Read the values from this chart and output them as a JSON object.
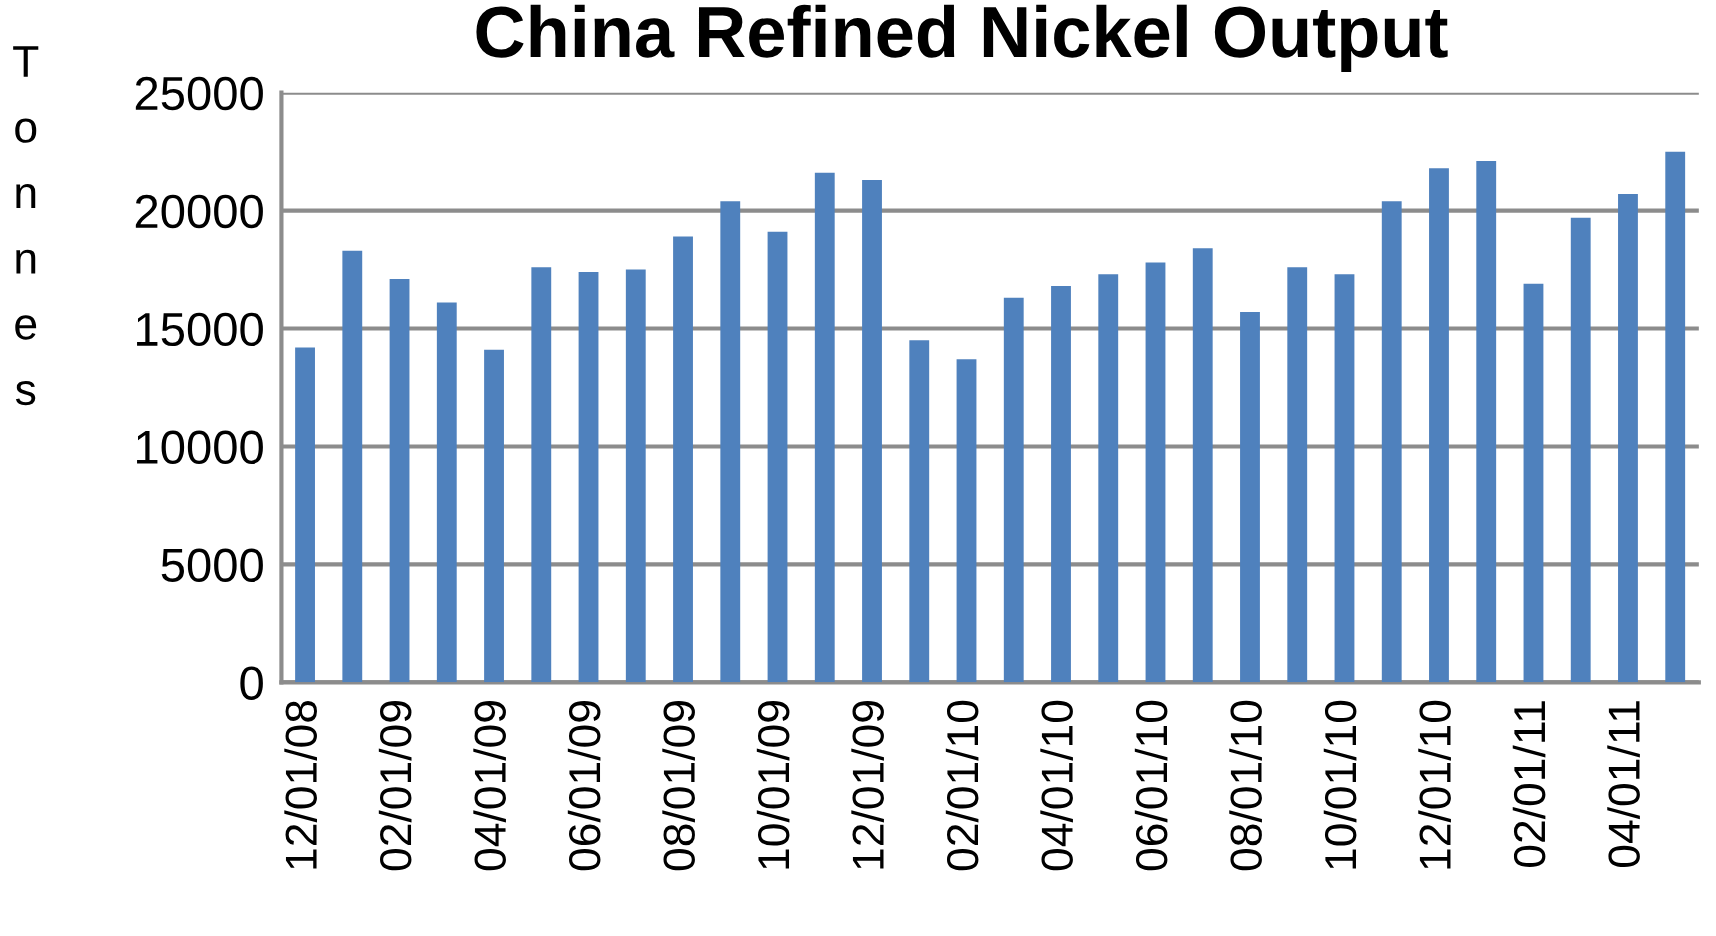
{
  "chart_data": {
    "type": "bar",
    "title": "China Refined Nickel Output",
    "ylabel": "Tonnes",
    "categories": [
      "12/01/08",
      null,
      "02/01/09",
      null,
      "04/01/09",
      null,
      "06/01/09",
      null,
      "08/01/09",
      null,
      "10/01/09",
      null,
      "12/01/09",
      null,
      "02/01/10",
      null,
      "04/01/10",
      null,
      "06/01/10",
      null,
      "08/01/10",
      null,
      "10/01/10",
      null,
      "12/01/10",
      null,
      "02/01/11",
      null,
      "04/01/11",
      null
    ],
    "values": [
      14200,
      18300,
      17100,
      16100,
      14100,
      17600,
      17400,
      17500,
      18900,
      20400,
      19100,
      21600,
      21300,
      14500,
      13700,
      16300,
      16800,
      17300,
      17800,
      18400,
      15700,
      17600,
      17300,
      20400,
      21800,
      22100,
      16900,
      19700,
      20700,
      22500
    ],
    "color": "#4f81bd",
    "ylim": [
      0,
      25000
    ],
    "yticks": [
      0,
      5000,
      10000,
      15000,
      20000,
      25000
    ],
    "grid": "y"
  }
}
